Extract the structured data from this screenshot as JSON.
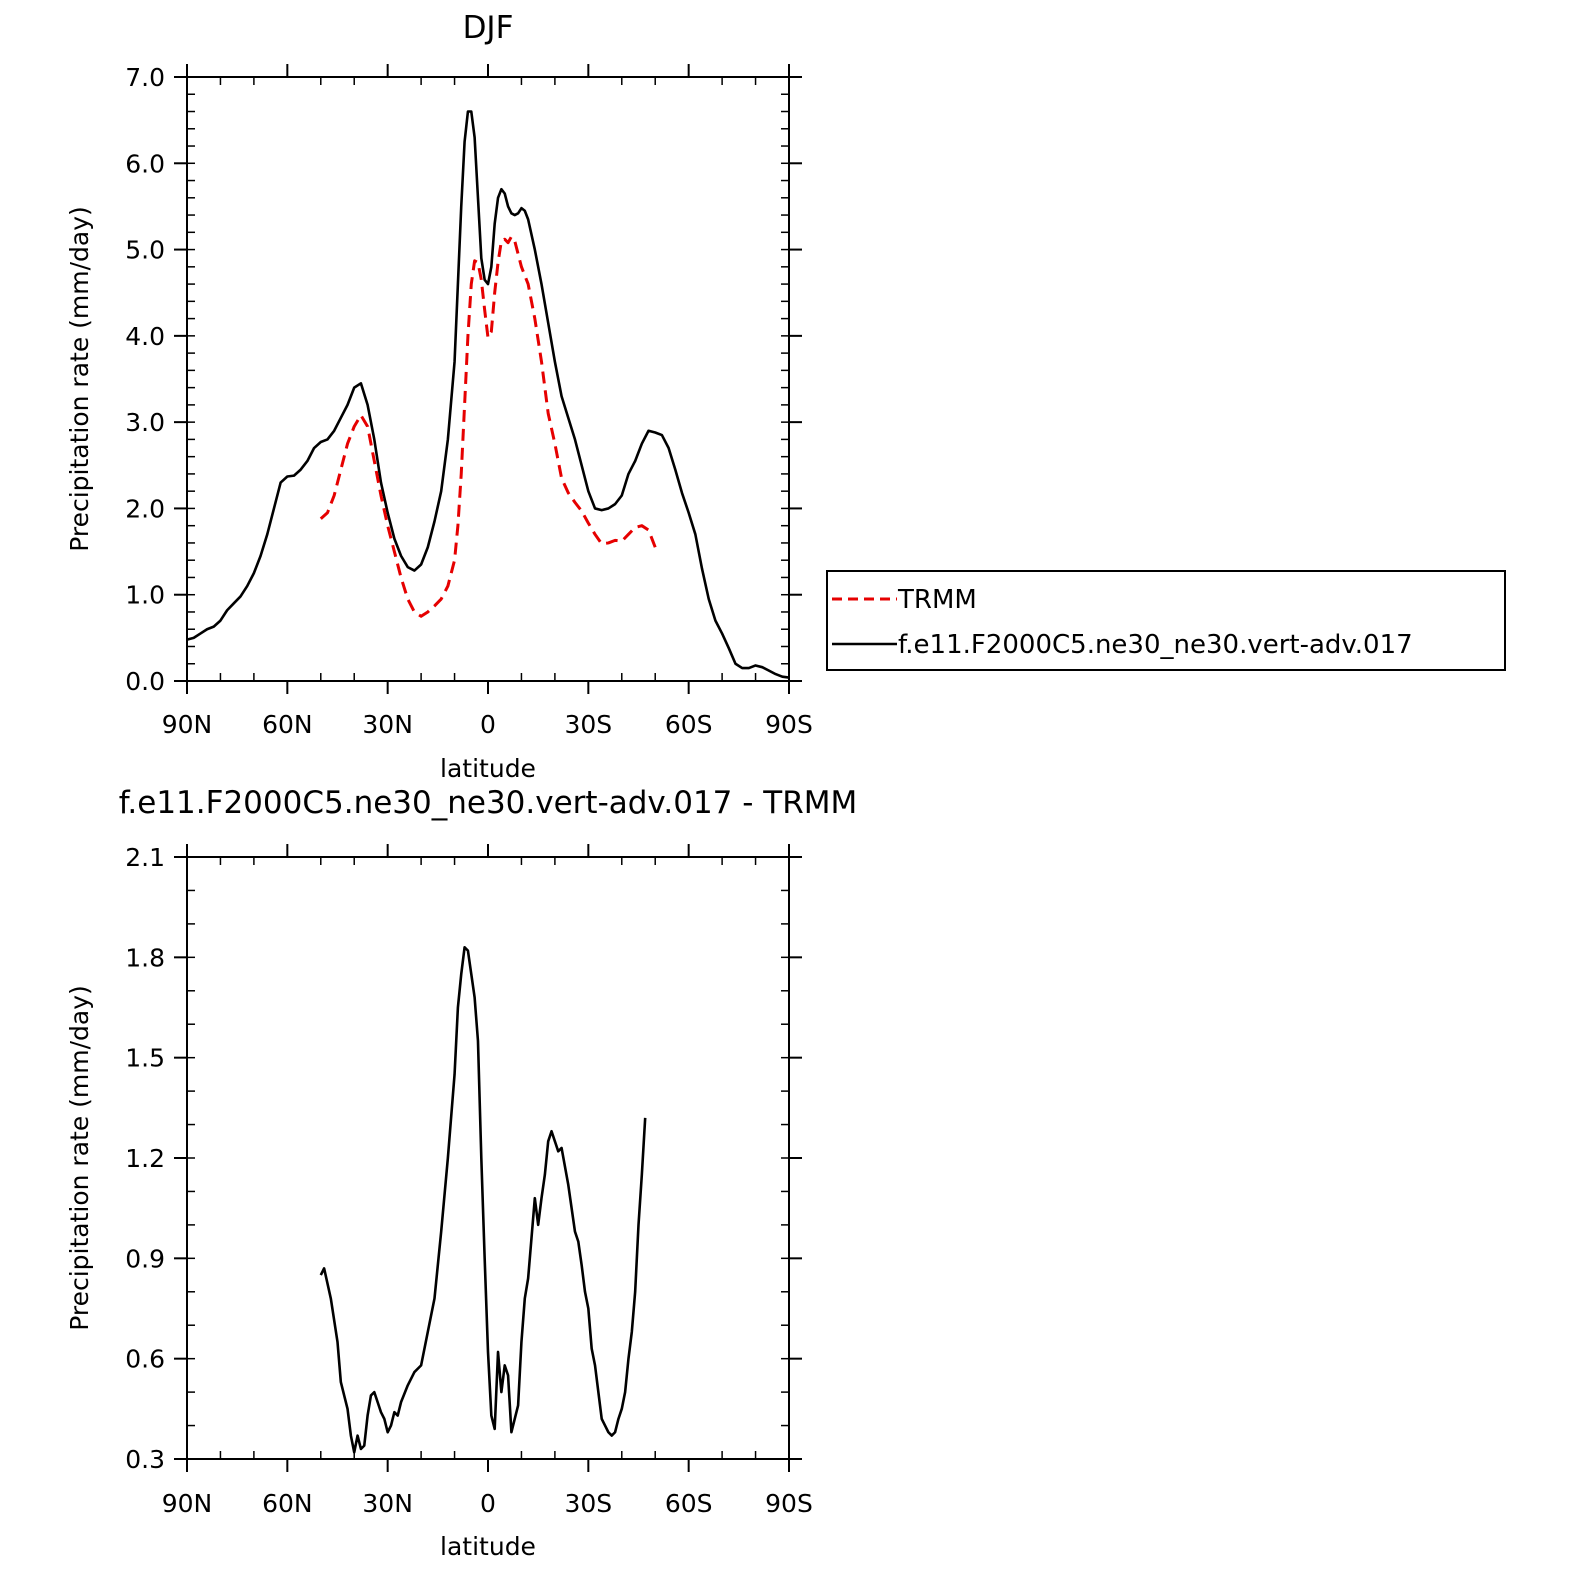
{
  "chart_data": [
    {
      "type": "line",
      "title": "DJF",
      "xlabel": "latitude",
      "ylabel": "Precipitation rate (mm/day)",
      "xlim": [
        90,
        -90
      ],
      "ylim": [
        0.0,
        7.0
      ],
      "x_ticks": [
        {
          "value": 90,
          "label": "90N"
        },
        {
          "value": 60,
          "label": "60N"
        },
        {
          "value": 30,
          "label": "30N"
        },
        {
          "value": 0,
          "label": "0"
        },
        {
          "value": -30,
          "label": "30S"
        },
        {
          "value": -60,
          "label": "60S"
        },
        {
          "value": -90,
          "label": "90S"
        }
      ],
      "y_ticks": [
        {
          "value": 0,
          "label": "0.0"
        },
        {
          "value": 1,
          "label": "1.0"
        },
        {
          "value": 2,
          "label": "2.0"
        },
        {
          "value": 3,
          "label": "3.0"
        },
        {
          "value": 4,
          "label": "4.0"
        },
        {
          "value": 5,
          "label": "5.0"
        },
        {
          "value": 6,
          "label": "6.0"
        },
        {
          "value": 7,
          "label": "7.0"
        }
      ],
      "legend": {
        "placement": "right",
        "border": true
      },
      "series": [
        {
          "name": "TRMM",
          "color": "#e60000",
          "dash": "dashed",
          "points": [
            [
              50,
              1.88
            ],
            [
              48,
              1.95
            ],
            [
              46,
              2.15
            ],
            [
              44,
              2.45
            ],
            [
              42,
              2.75
            ],
            [
              40,
              2.95
            ],
            [
              38,
              3.08
            ],
            [
              36,
              2.95
            ],
            [
              34,
              2.55
            ],
            [
              32,
              2.15
            ],
            [
              30,
              1.8
            ],
            [
              28,
              1.5
            ],
            [
              26,
              1.2
            ],
            [
              24,
              0.95
            ],
            [
              22,
              0.8
            ],
            [
              20,
              0.75
            ],
            [
              18,
              0.8
            ],
            [
              16,
              0.87
            ],
            [
              14,
              0.95
            ],
            [
              12,
              1.1
            ],
            [
              10,
              1.4
            ],
            [
              9,
              1.8
            ],
            [
              8,
              2.4
            ],
            [
              7,
              3.2
            ],
            [
              6,
              4.0
            ],
            [
              5,
              4.6
            ],
            [
              4,
              4.87
            ],
            [
              3,
              4.85
            ],
            [
              2,
              4.65
            ],
            [
              1,
              4.3
            ],
            [
              0,
              3.98
            ],
            [
              -1,
              4.05
            ],
            [
              -2,
              4.5
            ],
            [
              -3,
              4.85
            ],
            [
              -4,
              5.1
            ],
            [
              -5,
              5.12
            ],
            [
              -6,
              5.08
            ],
            [
              -7,
              5.15
            ],
            [
              -8,
              5.1
            ],
            [
              -10,
              4.8
            ],
            [
              -12,
              4.6
            ],
            [
              -14,
              4.2
            ],
            [
              -16,
              3.7
            ],
            [
              -18,
              3.1
            ],
            [
              -20,
              2.75
            ],
            [
              -22,
              2.35
            ],
            [
              -24,
              2.18
            ],
            [
              -26,
              2.07
            ],
            [
              -28,
              1.97
            ],
            [
              -30,
              1.83
            ],
            [
              -32,
              1.7
            ],
            [
              -34,
              1.59
            ],
            [
              -36,
              1.6
            ],
            [
              -38,
              1.63
            ],
            [
              -40,
              1.62
            ],
            [
              -42,
              1.7
            ],
            [
              -44,
              1.78
            ],
            [
              -46,
              1.8
            ],
            [
              -48,
              1.75
            ],
            [
              -50,
              1.55
            ]
          ]
        },
        {
          "name": "f.e11.F2000C5.ne30_ne30.vert-adv.017",
          "color": "#000000",
          "dash": "solid",
          "points": [
            [
              90,
              0.48
            ],
            [
              88,
              0.5
            ],
            [
              86,
              0.55
            ],
            [
              84,
              0.6
            ],
            [
              82,
              0.63
            ],
            [
              80,
              0.7
            ],
            [
              78,
              0.82
            ],
            [
              76,
              0.9
            ],
            [
              74,
              0.98
            ],
            [
              72,
              1.1
            ],
            [
              70,
              1.25
            ],
            [
              68,
              1.45
            ],
            [
              66,
              1.7
            ],
            [
              64,
              2.0
            ],
            [
              62,
              2.3
            ],
            [
              60,
              2.37
            ],
            [
              58,
              2.38
            ],
            [
              56,
              2.45
            ],
            [
              54,
              2.55
            ],
            [
              52,
              2.7
            ],
            [
              50,
              2.77
            ],
            [
              48,
              2.8
            ],
            [
              46,
              2.9
            ],
            [
              44,
              3.05
            ],
            [
              42,
              3.2
            ],
            [
              40,
              3.4
            ],
            [
              38,
              3.45
            ],
            [
              36,
              3.2
            ],
            [
              34,
              2.8
            ],
            [
              32,
              2.3
            ],
            [
              30,
              1.95
            ],
            [
              28,
              1.65
            ],
            [
              26,
              1.45
            ],
            [
              24,
              1.32
            ],
            [
              22,
              1.28
            ],
            [
              20,
              1.35
            ],
            [
              18,
              1.55
            ],
            [
              16,
              1.85
            ],
            [
              14,
              2.2
            ],
            [
              12,
              2.8
            ],
            [
              10,
              3.7
            ],
            [
              9,
              4.6
            ],
            [
              8,
              5.5
            ],
            [
              7,
              6.25
            ],
            [
              6,
              6.6
            ],
            [
              5,
              6.6
            ],
            [
              4,
              6.3
            ],
            [
              3,
              5.6
            ],
            [
              2,
              4.9
            ],
            [
              1,
              4.65
            ],
            [
              0,
              4.6
            ],
            [
              -1,
              4.8
            ],
            [
              -2,
              5.3
            ],
            [
              -3,
              5.6
            ],
            [
              -4,
              5.7
            ],
            [
              -5,
              5.65
            ],
            [
              -6,
              5.5
            ],
            [
              -7,
              5.42
            ],
            [
              -8,
              5.4
            ],
            [
              -9,
              5.42
            ],
            [
              -10,
              5.48
            ],
            [
              -11,
              5.45
            ],
            [
              -12,
              5.35
            ],
            [
              -14,
              5.0
            ],
            [
              -16,
              4.6
            ],
            [
              -18,
              4.15
            ],
            [
              -20,
              3.7
            ],
            [
              -22,
              3.3
            ],
            [
              -24,
              3.05
            ],
            [
              -26,
              2.8
            ],
            [
              -28,
              2.5
            ],
            [
              -30,
              2.2
            ],
            [
              -32,
              2.0
            ],
            [
              -34,
              1.98
            ],
            [
              -36,
              2.0
            ],
            [
              -38,
              2.05
            ],
            [
              -40,
              2.15
            ],
            [
              -42,
              2.4
            ],
            [
              -44,
              2.55
            ],
            [
              -46,
              2.75
            ],
            [
              -48,
              2.9
            ],
            [
              -50,
              2.88
            ],
            [
              -52,
              2.85
            ],
            [
              -54,
              2.7
            ],
            [
              -56,
              2.45
            ],
            [
              -58,
              2.18
            ],
            [
              -60,
              1.95
            ],
            [
              -62,
              1.7
            ],
            [
              -64,
              1.3
            ],
            [
              -66,
              0.95
            ],
            [
              -68,
              0.7
            ],
            [
              -70,
              0.55
            ],
            [
              -72,
              0.38
            ],
            [
              -74,
              0.2
            ],
            [
              -76,
              0.15
            ],
            [
              -78,
              0.15
            ],
            [
              -80,
              0.18
            ],
            [
              -82,
              0.16
            ],
            [
              -84,
              0.12
            ],
            [
              -86,
              0.08
            ],
            [
              -88,
              0.05
            ],
            [
              -90,
              0.04
            ]
          ]
        }
      ]
    },
    {
      "type": "line",
      "title": "f.e11.F2000C5.ne30_ne30.vert-adv.017 - TRMM",
      "xlabel": "latitude",
      "ylabel": "Precipitation rate (mm/day)",
      "xlim": [
        90,
        -90
      ],
      "ylim": [
        0.3,
        2.1
      ],
      "x_ticks": [
        {
          "value": 90,
          "label": "90N"
        },
        {
          "value": 60,
          "label": "60N"
        },
        {
          "value": 30,
          "label": "30N"
        },
        {
          "value": 0,
          "label": "0"
        },
        {
          "value": -30,
          "label": "30S"
        },
        {
          "value": -60,
          "label": "60S"
        },
        {
          "value": -90,
          "label": "90S"
        }
      ],
      "y_ticks": [
        {
          "value": 0.3,
          "label": "0.3"
        },
        {
          "value": 0.6,
          "label": "0.6"
        },
        {
          "value": 0.9,
          "label": "0.9"
        },
        {
          "value": 1.2,
          "label": "1.2"
        },
        {
          "value": 1.5,
          "label": "1.5"
        },
        {
          "value": 1.8,
          "label": "1.8"
        },
        {
          "value": 2.1,
          "label": "2.1"
        }
      ],
      "series": [
        {
          "color": "#000000",
          "dash": "solid",
          "points": [
            [
              50,
              0.85
            ],
            [
              49,
              0.87
            ],
            [
              47,
              0.78
            ],
            [
              45,
              0.65
            ],
            [
              44,
              0.53
            ],
            [
              42,
              0.45
            ],
            [
              41,
              0.37
            ],
            [
              40,
              0.32
            ],
            [
              39,
              0.37
            ],
            [
              38,
              0.33
            ],
            [
              37,
              0.34
            ],
            [
              36,
              0.43
            ],
            [
              35,
              0.49
            ],
            [
              34,
              0.5
            ],
            [
              33,
              0.47
            ],
            [
              32,
              0.44
            ],
            [
              31,
              0.42
            ],
            [
              30,
              0.38
            ],
            [
              29,
              0.4
            ],
            [
              28,
              0.44
            ],
            [
              27,
              0.43
            ],
            [
              26,
              0.47
            ],
            [
              24,
              0.52
            ],
            [
              22,
              0.56
            ],
            [
              20,
              0.58
            ],
            [
              18,
              0.68
            ],
            [
              16,
              0.78
            ],
            [
              14,
              0.98
            ],
            [
              12,
              1.2
            ],
            [
              10,
              1.45
            ],
            [
              9,
              1.65
            ],
            [
              8,
              1.75
            ],
            [
              7,
              1.83
            ],
            [
              6,
              1.82
            ],
            [
              5,
              1.75
            ],
            [
              4,
              1.68
            ],
            [
              3,
              1.55
            ],
            [
              2,
              1.2
            ],
            [
              1,
              0.9
            ],
            [
              0,
              0.62
            ],
            [
              -1,
              0.43
            ],
            [
              -2,
              0.39
            ],
            [
              -3,
              0.62
            ],
            [
              -4,
              0.5
            ],
            [
              -5,
              0.58
            ],
            [
              -6,
              0.55
            ],
            [
              -7,
              0.38
            ],
            [
              -8,
              0.42
            ],
            [
              -9,
              0.46
            ],
            [
              -10,
              0.65
            ],
            [
              -11,
              0.78
            ],
            [
              -12,
              0.84
            ],
            [
              -13,
              0.96
            ],
            [
              -14,
              1.08
            ],
            [
              -15,
              1.0
            ],
            [
              -16,
              1.08
            ],
            [
              -17,
              1.15
            ],
            [
              -18,
              1.25
            ],
            [
              -19,
              1.28
            ],
            [
              -20,
              1.25
            ],
            [
              -21,
              1.22
            ],
            [
              -22,
              1.23
            ],
            [
              -24,
              1.12
            ],
            [
              -26,
              0.98
            ],
            [
              -27,
              0.95
            ],
            [
              -28,
              0.88
            ],
            [
              -29,
              0.8
            ],
            [
              -30,
              0.75
            ],
            [
              -31,
              0.63
            ],
            [
              -32,
              0.58
            ],
            [
              -34,
              0.42
            ],
            [
              -35,
              0.4
            ],
            [
              -36,
              0.38
            ],
            [
              -37,
              0.37
            ],
            [
              -38,
              0.38
            ],
            [
              -39,
              0.42
            ],
            [
              -40,
              0.45
            ],
            [
              -41,
              0.5
            ],
            [
              -42,
              0.6
            ],
            [
              -43,
              0.68
            ],
            [
              -44,
              0.8
            ],
            [
              -45,
              1.0
            ],
            [
              -46,
              1.15
            ],
            [
              -47,
              1.32
            ]
          ]
        }
      ]
    }
  ]
}
